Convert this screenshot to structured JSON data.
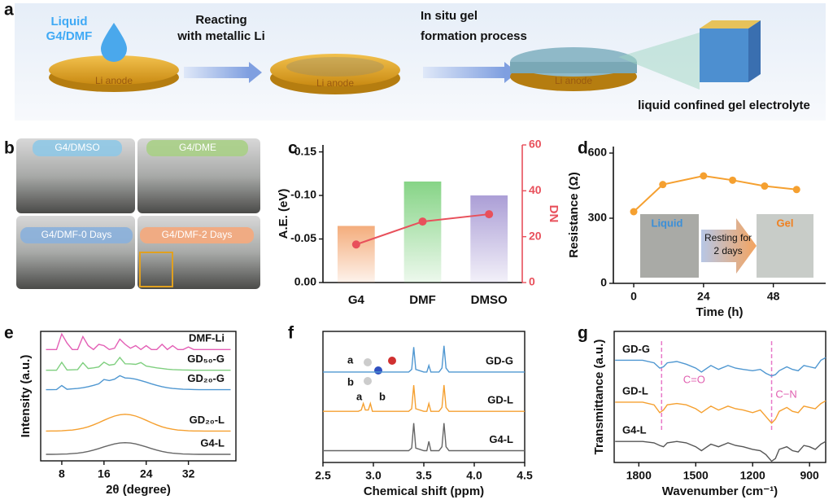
{
  "panel_labels": [
    "a",
    "b",
    "c",
    "d",
    "e",
    "f",
    "g"
  ],
  "panel_a": {
    "liquid": [
      "Liquid",
      "G4/DMF"
    ],
    "step1": [
      "Reacting",
      "with metallic Li"
    ],
    "step2": [
      "In situ gel",
      "formation process"
    ],
    "anode": "Li anode",
    "result": "liquid confined gel electrolyte"
  },
  "panel_b": {
    "photos": [
      "G4/DMSO",
      "G4/DME",
      "G4/DMF-0 Days",
      "G4/DMF-2 Days"
    ]
  },
  "chart_data": [
    {
      "type": "bar",
      "categories": [
        "G4",
        "DMF",
        "DMSO"
      ],
      "series": [
        {
          "type": "bar",
          "values": [
            -0.065,
            -0.116,
            -0.1
          ],
          "colors": [
            "#f4ad7c",
            "#86d486",
            "#ab9ed6"
          ]
        },
        {
          "type": "line",
          "axis": "y2",
          "values": [
            16.6,
            26.6,
            29.8
          ],
          "color": "#e8505b"
        }
      ],
      "ylabel": "A.E. (eV)",
      "y2label": "DN",
      "ylim": [
        0,
        -0.158
      ],
      "yticks": [
        -0.15,
        {
          "value": -0.1,
          "label": "-0.10"
        },
        -0.05,
        {
          "value": 0,
          "label": "0.00"
        }
      ],
      "y2lim": [
        0,
        60
      ],
      "y2ticks": [
        0,
        20,
        40,
        60
      ]
    },
    {
      "type": "line",
      "x": [
        0,
        10,
        24,
        34,
        45,
        56
      ],
      "values": [
        330,
        455,
        495,
        475,
        448,
        432
      ],
      "color": "#f5a030",
      "xlim": [
        -7,
        66
      ],
      "xticks": [
        0,
        24,
        48
      ],
      "ylim": [
        0,
        630
      ],
      "yticks": [
        0,
        300,
        600
      ],
      "xlabel": "Time (h)",
      "ylabel": "Resistance (Ω)",
      "annotations": [
        "Liquid",
        "Resting for",
        "2 days",
        "Gel"
      ]
    },
    {
      "type": "line",
      "x": [
        5,
        6,
        7,
        8,
        9,
        10,
        11,
        12,
        13,
        14,
        15,
        16,
        17,
        18,
        19,
        20,
        21,
        22,
        23,
        24,
        25,
        26,
        27,
        28,
        29,
        30,
        31,
        32,
        33,
        34,
        35,
        36,
        37,
        38,
        39,
        40
      ],
      "series": [
        {
          "name": "DMF-Li",
          "color": "#e35fb5",
          "values": [
            8.6,
            8.6,
            8.6,
            9.8,
            9.1,
            8.6,
            8.6,
            9.6,
            8.9,
            8.6,
            9.0,
            8.9,
            8.6,
            8.7,
            9.4,
            9.0,
            8.7,
            8.9,
            8.6,
            8.9,
            8.6,
            8.6,
            9.0,
            8.6,
            8.9,
            8.6,
            8.6,
            8.8,
            8.6,
            8.6,
            8.6,
            8.6,
            8.6,
            8.6,
            8.6,
            8.6
          ]
        },
        {
          "name": "GD₅₀-G",
          "color": "#7fcf7f",
          "values": [
            7.0,
            7.0,
            7.0,
            7.61,
            7.02,
            7.03,
            7.05,
            7.58,
            7.13,
            7.18,
            7.25,
            7.62,
            7.39,
            7.45,
            7.99,
            7.5,
            7.49,
            7.45,
            7.59,
            7.32,
            7.25,
            7.18,
            7.13,
            7.08,
            7.05,
            7.03,
            7.02,
            7.01,
            7.0,
            7.0,
            7.0,
            7.0,
            7.0,
            7.0,
            7.0,
            7.0
          ]
        },
        {
          "name": "GD₂₀-G",
          "color": "#4f97d1",
          "values": [
            5.5,
            5.5,
            5.51,
            5.82,
            5.53,
            5.56,
            5.59,
            5.65,
            5.73,
            5.83,
            5.95,
            6.28,
            6.2,
            6.31,
            6.58,
            6.4,
            6.38,
            6.31,
            6.2,
            6.08,
            5.95,
            5.83,
            5.73,
            5.65,
            5.59,
            5.56,
            5.53,
            5.52,
            5.51,
            5.5,
            5.5,
            5.5,
            5.5,
            5.5,
            5.5,
            5.5
          ]
        },
        {
          "name": "GD₂₀-L",
          "color": "#f5a030",
          "values": [
            2.3,
            2.31,
            2.31,
            2.32,
            2.35,
            2.38,
            2.44,
            2.52,
            2.63,
            2.78,
            2.95,
            3.13,
            3.31,
            3.46,
            3.56,
            3.6,
            3.56,
            3.46,
            3.31,
            3.13,
            2.95,
            2.78,
            2.63,
            2.52,
            2.44,
            2.38,
            2.35,
            2.32,
            2.31,
            2.31,
            2.3,
            2.3,
            2.3,
            2.3,
            2.3,
            2.3
          ]
        },
        {
          "name": "G4-L",
          "color": "#666666",
          "values": [
            0.5,
            0.5,
            0.51,
            0.52,
            0.53,
            0.56,
            0.59,
            0.65,
            0.73,
            0.83,
            0.95,
            1.08,
            1.2,
            1.31,
            1.38,
            1.4,
            1.38,
            1.31,
            1.2,
            1.08,
            0.95,
            0.83,
            0.73,
            0.65,
            0.59,
            0.56,
            0.53,
            0.52,
            0.51,
            0.5,
            0.5,
            0.5,
            0.5,
            0.5,
            0.5,
            0.5
          ]
        }
      ],
      "xlim": [
        4,
        41
      ],
      "xticks": [
        8,
        16,
        24,
        32
      ],
      "ylim": [
        0,
        10
      ],
      "xlabel": "2θ (degree)",
      "ylabel": "Intensity (a.u.)"
    },
    {
      "type": "line",
      "x": [
        2.5,
        2.85,
        2.88,
        2.9,
        2.92,
        2.95,
        2.97,
        2.99,
        3.35,
        3.38,
        3.4,
        3.42,
        3.5,
        3.53,
        3.55,
        3.57,
        3.6,
        3.65,
        3.68,
        3.7,
        3.72,
        3.75,
        4.5
      ],
      "series": [
        {
          "name": "GD-G",
          "color": "#4f97d1",
          "values": [
            6.9,
            6.9,
            6.9,
            6.9,
            6.9,
            6.9,
            6.9,
            6.9,
            6.9,
            7.1,
            8.8,
            7.1,
            6.9,
            6.9,
            7.4,
            6.9,
            6.9,
            6.9,
            7.2,
            8.9,
            7.2,
            6.9,
            6.9
          ]
        },
        {
          "name": "GD-L",
          "color": "#f5a030",
          "values": [
            3.9,
            3.9,
            4.0,
            4.5,
            4.0,
            4.0,
            4.5,
            3.9,
            3.9,
            4.1,
            5.9,
            4.1,
            3.9,
            3.9,
            4.5,
            3.9,
            3.9,
            3.9,
            4.2,
            5.9,
            4.2,
            3.9,
            3.9
          ]
        },
        {
          "name": "G4-L",
          "color": "#666666",
          "values": [
            0.9,
            0.9,
            0.9,
            0.9,
            0.9,
            0.9,
            0.9,
            0.9,
            0.9,
            1.1,
            3.0,
            1.1,
            0.9,
            0.9,
            1.6,
            0.9,
            0.9,
            0.9,
            1.2,
            3.0,
            1.2,
            0.9,
            0.9
          ]
        }
      ],
      "xlim": [
        2.5,
        4.5
      ],
      "xticks": [
        2.5,
        {
          "value": 3,
          "label": "3.0"
        },
        3.5,
        {
          "value": 4,
          "label": "4.0"
        },
        4.5
      ],
      "ylim": [
        0,
        10
      ],
      "xlabel": "Chemical shift (ppm)",
      "annotations": [
        "a",
        "b",
        "a",
        "b"
      ]
    },
    {
      "type": "line",
      "x": [
        1925,
        1850,
        1780,
        1720,
        1690,
        1670,
        1650,
        1600,
        1550,
        1500,
        1470,
        1450,
        1420,
        1380,
        1330,
        1290,
        1250,
        1200,
        1160,
        1130,
        1100,
        1080,
        1060,
        1020,
        990,
        960,
        930,
        900,
        870,
        840,
        815
      ],
      "series": [
        {
          "name": "GD-G",
          "color": "#4f97d1",
          "values": [
            7.8,
            7.8,
            7.8,
            7.6,
            7.2,
            7.3,
            7.6,
            7.7,
            7.5,
            7.2,
            6.9,
            7.1,
            7.4,
            7.1,
            7.4,
            7.2,
            7.1,
            7.0,
            7.1,
            6.8,
            6.6,
            6.7,
            7.0,
            7.3,
            7.1,
            7.0,
            7.4,
            7.3,
            7.2,
            7.8,
            8.0
          ]
        },
        {
          "name": "GD-L",
          "color": "#f5a030",
          "values": [
            4.6,
            4.6,
            4.6,
            4.4,
            3.8,
            4.0,
            4.4,
            4.5,
            4.4,
            4.1,
            3.8,
            4.0,
            4.3,
            4.0,
            4.3,
            4.1,
            4.0,
            3.8,
            4.0,
            3.5,
            3.0,
            3.3,
            3.9,
            4.2,
            3.9,
            3.8,
            4.3,
            4.2,
            4.1,
            4.5,
            4.7
          ]
        },
        {
          "name": "G4-L",
          "color": "#555555",
          "values": [
            1.6,
            1.6,
            1.6,
            1.5,
            1.3,
            1.2,
            1.5,
            1.6,
            1.5,
            1.2,
            0.9,
            1.1,
            1.4,
            1.2,
            1.5,
            1.3,
            1.2,
            1.0,
            0.9,
            0.6,
            0.1,
            0.3,
            1.0,
            1.2,
            0.9,
            0.8,
            1.3,
            1.2,
            1.0,
            1.4,
            1.6
          ]
        }
      ],
      "xlim": [
        1930,
        815
      ],
      "xticks": [
        1800,
        1500,
        1200,
        900
      ],
      "ylim": [
        0,
        10
      ],
      "xlabel": "Wavenumber (cm⁻¹)",
      "ylabel": "Transmittance (a.u.)",
      "markers": [
        {
          "x": 1680,
          "label": "C=O"
        },
        {
          "x": 1100,
          "label": "C−N"
        }
      ]
    }
  ]
}
